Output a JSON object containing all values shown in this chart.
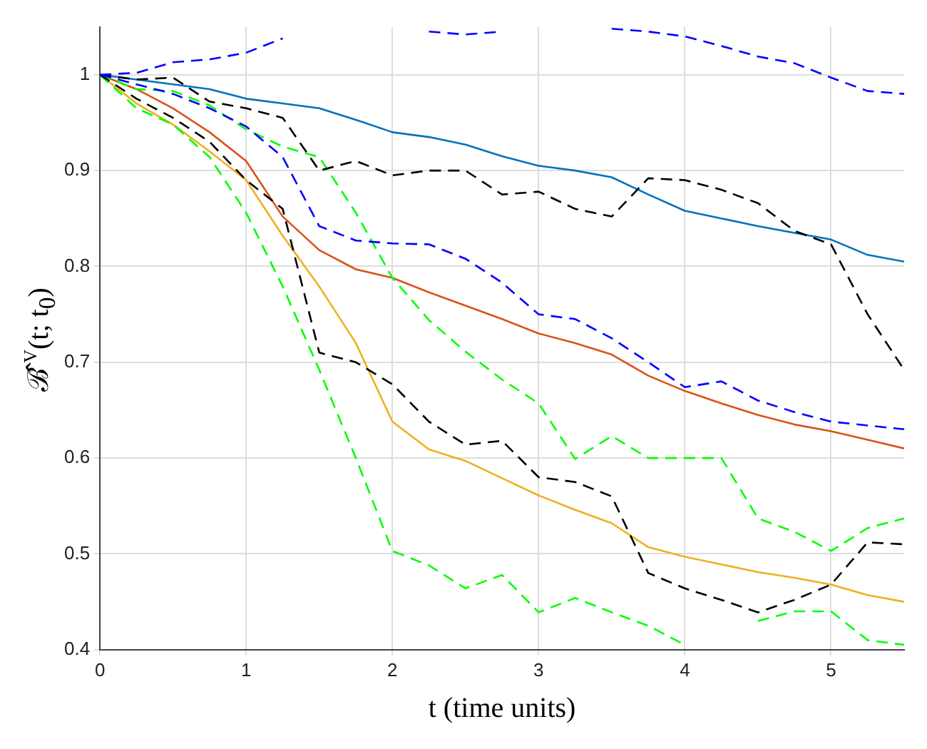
{
  "chart_data": {
    "type": "line",
    "xlabel": "t (time units)",
    "ylabel": "ℬ̂$^{V}$(t; t$_{0}$)",
    "x": [
      0,
      0.25,
      0.5,
      0.75,
      1,
      1.25,
      1.5,
      1.75,
      2,
      2.25,
      2.5,
      2.75,
      3,
      3.25,
      3.5,
      3.75,
      4,
      4.25,
      4.5,
      4.75,
      5,
      5.25,
      5.5
    ],
    "series": [
      {
        "color": "#0000ff",
        "line_style": "dashed",
        "values": [
          1,
          1.002,
          1.013,
          1.016,
          1.023,
          1.038,
          null,
          null,
          null,
          1.045,
          1.042,
          1.045,
          null,
          null,
          1.048,
          1.045,
          1.04,
          1.03,
          1.019,
          1.012,
          0.997,
          0.983,
          0.98
        ]
      },
      {
        "color": "#0000ff",
        "line_style": "dashed",
        "values": [
          1,
          0.99,
          0.98,
          0.965,
          0.946,
          0.914,
          0.842,
          0.827,
          0.824,
          0.823,
          0.808,
          0.783,
          0.75,
          0.745,
          0.725,
          0.7,
          0.674,
          0.68,
          0.66,
          0.648,
          0.638,
          0.634,
          0.63
        ]
      },
      {
        "color": "#000000",
        "line_style": "dashed",
        "values": [
          1,
          0.995,
          0.997,
          0.972,
          0.965,
          0.955,
          0.9,
          0.91,
          0.895,
          0.9,
          0.9,
          0.875,
          0.878,
          0.86,
          0.852,
          0.892,
          0.89,
          0.88,
          0.866,
          0.837,
          0.823,
          0.75,
          0.692
        ]
      },
      {
        "color": "#000000",
        "line_style": "dashed",
        "values": [
          1,
          0.975,
          0.955,
          0.93,
          0.89,
          0.86,
          0.71,
          0.7,
          0.677,
          0.638,
          0.614,
          0.618,
          0.58,
          0.575,
          0.56,
          0.48,
          0.464,
          0.452,
          0.439,
          0.452,
          0.468,
          0.512,
          0.51
        ]
      },
      {
        "color": "#00ff00",
        "line_style": "dashed",
        "values": [
          1,
          0.985,
          0.983,
          0.968,
          0.943,
          0.925,
          0.914,
          0.856,
          0.788,
          0.744,
          0.711,
          0.682,
          0.657,
          0.599,
          0.623,
          0.6,
          0.6,
          0.6,
          0.537,
          0.523,
          0.503,
          0.527,
          0.537
        ]
      },
      {
        "color": "#00ff00",
        "line_style": "dashed",
        "values": [
          1,
          0.965,
          0.948,
          0.914,
          0.856,
          0.779,
          0.692,
          0.6,
          0.503,
          0.488,
          0.464,
          0.478,
          0.439,
          0.454,
          0.439,
          0.425,
          0.405,
          null,
          0.43,
          0.44,
          0.44,
          0.41,
          0.405
        ]
      },
      {
        "color": "#0072bd",
        "line_style": "solid",
        "values": [
          1,
          0.995,
          0.99,
          0.985,
          0.975,
          0.97,
          0.965,
          0.953,
          0.94,
          0.935,
          0.927,
          0.915,
          0.905,
          0.9,
          0.893,
          0.875,
          0.858,
          0.85,
          0.842,
          0.835,
          0.828,
          0.812,
          0.805
        ]
      },
      {
        "color": "#d95319",
        "line_style": "solid",
        "values": [
          1,
          0.985,
          0.965,
          0.94,
          0.91,
          0.852,
          0.817,
          0.797,
          0.788,
          0.773,
          0.759,
          0.745,
          0.73,
          0.72,
          0.708,
          0.686,
          0.67,
          0.657,
          0.645,
          0.635,
          0.628,
          0.619,
          0.61
        ]
      },
      {
        "color": "#edb120",
        "line_style": "solid",
        "values": [
          1,
          0.97,
          0.948,
          0.92,
          0.89,
          0.832,
          0.779,
          0.72,
          0.638,
          0.609,
          0.597,
          0.579,
          0.561,
          0.546,
          0.532,
          0.507,
          0.497,
          0.489,
          0.481,
          0.475,
          0.468,
          0.457,
          0.45
        ]
      }
    ],
    "xlim": [
      0,
      5.5
    ],
    "xticks": [
      0,
      1,
      2,
      3,
      4,
      5
    ],
    "ylim": [
      0.4,
      1.05
    ],
    "yticks": [
      0.4,
      0.5,
      0.6,
      0.7,
      0.8,
      0.9,
      1
    ],
    "grid": true
  }
}
